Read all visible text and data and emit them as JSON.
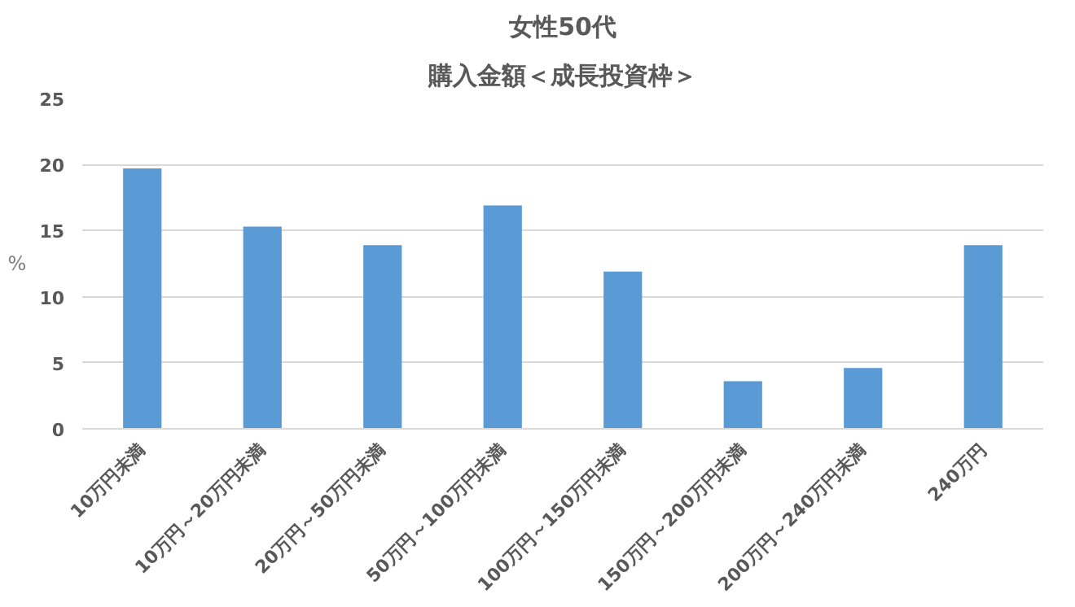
{
  "chart_data": {
    "type": "bar",
    "title": "女性50代",
    "subtitle": "購入金額＜成長投資枠＞",
    "ylabel": "%",
    "categories": [
      "10万円未満",
      "10万円～20万円未満",
      "20万円～50万円未満",
      "50万円～100万円未満",
      "100万円～150万円未満",
      "150万円～200万円未満",
      "200万円～240万円未満",
      "240万円"
    ],
    "values": [
      19.7,
      15.3,
      13.9,
      16.9,
      11.9,
      3.6,
      4.6,
      13.9
    ],
    "color": "#5b9bd5",
    "ylim": [
      0,
      25
    ],
    "yticks": [
      0,
      5,
      10,
      15,
      20,
      25
    ],
    "grid": "y"
  }
}
